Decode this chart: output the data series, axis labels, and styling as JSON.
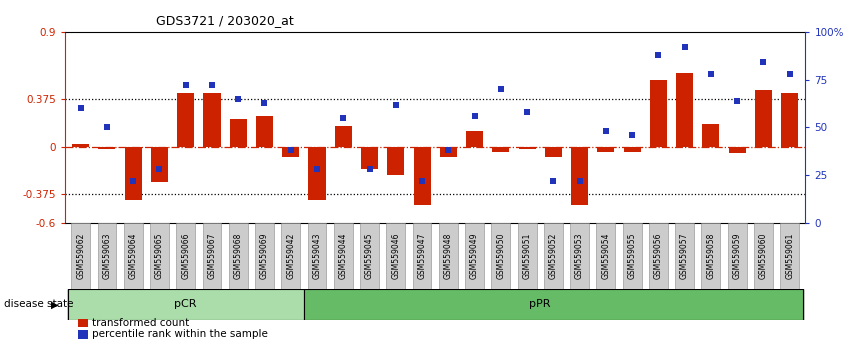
{
  "title": "GDS3721 / 203020_at",
  "samples": [
    "GSM559062",
    "GSM559063",
    "GSM559064",
    "GSM559065",
    "GSM559066",
    "GSM559067",
    "GSM559068",
    "GSM559069",
    "GSM559042",
    "GSM559043",
    "GSM559044",
    "GSM559045",
    "GSM559046",
    "GSM559047",
    "GSM559048",
    "GSM559049",
    "GSM559050",
    "GSM559051",
    "GSM559052",
    "GSM559053",
    "GSM559054",
    "GSM559055",
    "GSM559056",
    "GSM559057",
    "GSM559058",
    "GSM559059",
    "GSM559060",
    "GSM559061"
  ],
  "transformed_count": [
    0.02,
    -0.02,
    -0.42,
    -0.28,
    0.42,
    0.42,
    0.22,
    0.24,
    -0.08,
    -0.42,
    0.16,
    -0.18,
    -0.22,
    -0.46,
    -0.08,
    0.12,
    -0.04,
    -0.02,
    -0.08,
    -0.46,
    -0.04,
    -0.04,
    0.52,
    0.58,
    0.18,
    -0.05,
    0.44,
    0.42
  ],
  "percentile_rank": [
    60,
    50,
    22,
    28,
    72,
    72,
    65,
    63,
    38,
    28,
    55,
    28,
    62,
    22,
    38,
    56,
    70,
    58,
    22,
    22,
    48,
    46,
    88,
    92,
    78,
    64,
    84,
    78
  ],
  "pcr_count": 9,
  "ppr_count": 19,
  "ylim_left": [
    -0.6,
    0.9
  ],
  "ylim_right": [
    0,
    100
  ],
  "hline_values": [
    0.375,
    -0.375
  ],
  "right_ticks": [
    0,
    25,
    50,
    75,
    100
  ],
  "right_tick_labels": [
    "0",
    "25",
    "50",
    "75",
    "100%"
  ],
  "left_ticks": [
    -0.6,
    -0.375,
    0,
    0.375,
    0.9
  ],
  "left_tick_labels": [
    "-0.6",
    "-0.375",
    "0",
    "0.375",
    "0.9"
  ],
  "bar_color": "#CC2200",
  "dot_color": "#2233BB",
  "zero_line_color": "#CC2200",
  "hline_color": "#000000",
  "pcr_color": "#AADDAA",
  "ppr_color": "#66BB66",
  "pcr_label": "pCR",
  "ppr_label": "pPR",
  "disease_state_label": "disease state",
  "legend_bar_label": "transformed count",
  "legend_dot_label": "percentile rank within the sample",
  "fig_width": 8.66,
  "fig_height": 3.54,
  "dpi": 100
}
